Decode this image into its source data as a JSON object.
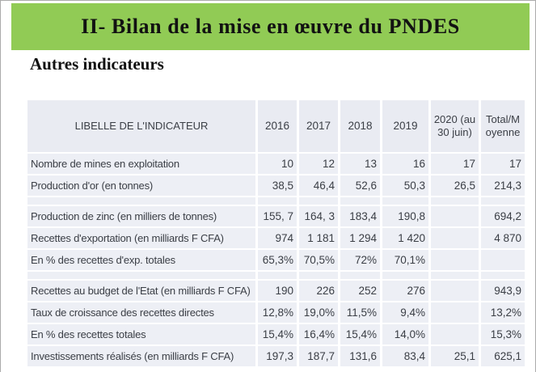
{
  "title": "II- Bilan de la mise en œuvre du PNDES",
  "subtitle": "Autres indicateurs",
  "colors": {
    "title_bar_green": "#91cb55",
    "table_header_bg": "#e9ebf2",
    "table_row_bg": "#edeff5",
    "table_text": "#3a3e45",
    "title_text": "#121212",
    "page_border": "#ababab"
  },
  "table": {
    "header": {
      "label": "LIBELLE DE L'INDICATEUR",
      "columns": [
        "2016",
        "2017",
        "2018",
        "2019",
        "2020 (au 30 juin)",
        "Total/Moyenne"
      ]
    },
    "groups": [
      [
        {
          "label": "Nombre de mines en exploitation",
          "values": [
            "10",
            "12",
            "13",
            "16",
            "17",
            "17"
          ]
        },
        {
          "label": "Production d'or (en tonnes)",
          "values": [
            "38,5",
            "46,4",
            "52,6",
            "50,3",
            "26,5",
            "214,3"
          ]
        }
      ],
      [
        {
          "label": "Production de zinc (en milliers de tonnes)",
          "values": [
            "155, 7",
            "164, 3",
            "183,4",
            "190,8",
            "",
            "694,2"
          ]
        },
        {
          "label": "Recettes d'exportation (en milliards F CFA)",
          "values": [
            "974",
            "1 181",
            "1 294",
            "1 420",
            "",
            "4 870"
          ]
        },
        {
          "label": "En % des recettes d'exp. totales",
          "values": [
            "65,3%",
            "70,5%",
            "72%",
            "70,1%",
            "",
            ""
          ]
        }
      ],
      [
        {
          "label": "Recettes au budget de l'Etat (en milliards F CFA)",
          "values": [
            "190",
            "226",
            "252",
            "276",
            "",
            "943,9"
          ]
        },
        {
          "label": "Taux de croissance des recettes directes",
          "values": [
            "12,8%",
            "19,0%",
            "11,5%",
            "9,4%",
            "",
            "13,2%"
          ]
        },
        {
          "label": "En % des recettes totales",
          "values": [
            "15,4%",
            "16,4%",
            "15,4%",
            "14,0%",
            "",
            "15,3%"
          ]
        },
        {
          "label": "Investissements réalisés (en milliards F CFA)",
          "values": [
            "197,3",
            "187,7",
            "131,6",
            "83,4",
            "25,1",
            "625,1"
          ]
        }
      ]
    ]
  }
}
